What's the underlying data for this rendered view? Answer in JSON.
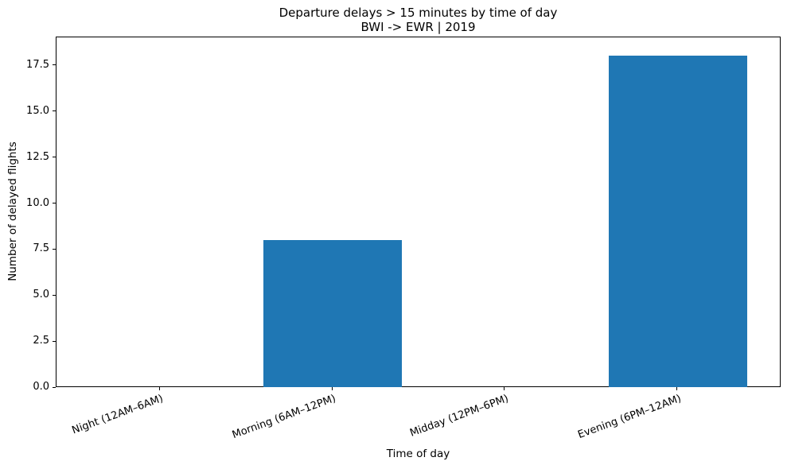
{
  "figure": {
    "background": "#ffffff"
  },
  "chart_data": {
    "type": "bar",
    "title": "Departure delays > 15 minutes by time of day",
    "subtitle": "BWI -> EWR | 2019",
    "xlabel": "Time of day",
    "ylabel": "Number of delayed flights",
    "categories": [
      "Night (12AM–6AM)",
      "Morning (6AM–12PM)",
      "Midday (12PM–6PM)",
      "Evening (6PM–12AM)"
    ],
    "values": [
      0,
      8,
      0,
      18
    ],
    "bar_color": "#1f77b4",
    "yticks": [
      0,
      2.5,
      5,
      7.5,
      10,
      12.5,
      15,
      17.5
    ],
    "ytick_labels": [
      "0.0",
      "2.5",
      "5.0",
      "7.5",
      "10.0",
      "12.5",
      "15.0",
      "17.5"
    ],
    "ylim": [
      0,
      19.05
    ],
    "xlim": [
      -0.6,
      3.6
    ],
    "bar_width": 0.8,
    "xtick_rotation_deg": 20,
    "grid": false,
    "legend": false,
    "spine_color": "#000000",
    "text_color": "#000000"
  }
}
